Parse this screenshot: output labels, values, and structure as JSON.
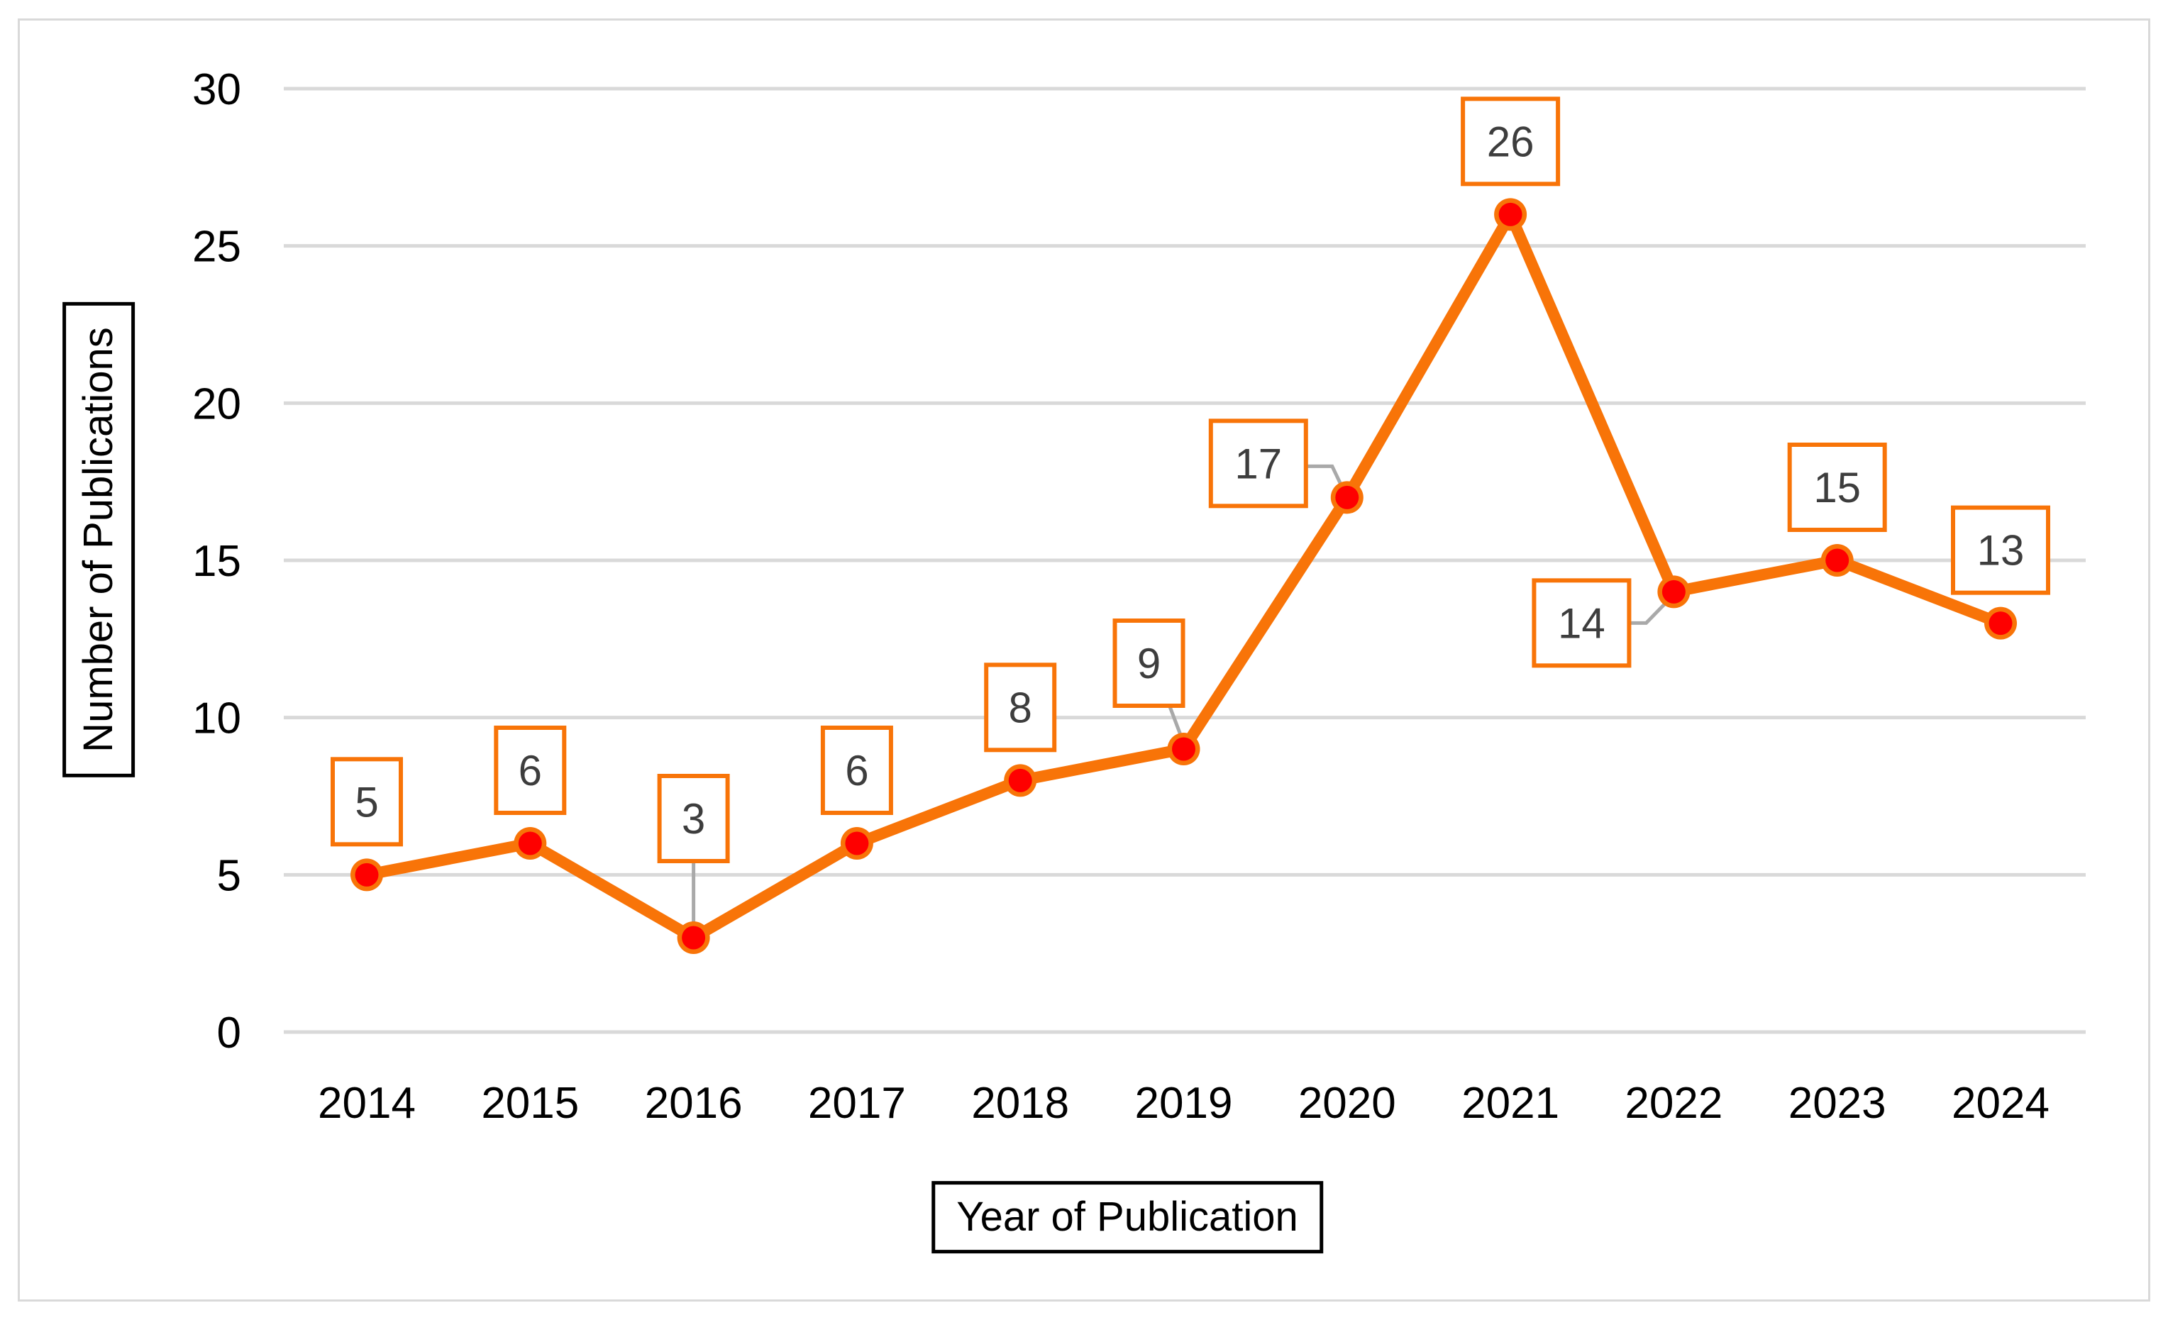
{
  "figure": {
    "background_color": "#FFFFFF",
    "frame_color": "#D9D9D9"
  },
  "chart_data": {
    "type": "line",
    "title": "",
    "xlabel": "Year of Publication",
    "ylabel": "Number of Publications",
    "categories": [
      "2014",
      "2015",
      "2016",
      "2017",
      "2018",
      "2019",
      "2020",
      "2021",
      "2022",
      "2023",
      "2024"
    ],
    "series": [
      {
        "name": "Number of Publications",
        "values": [
          5,
          6,
          3,
          6,
          8,
          9,
          17,
          26,
          14,
          15,
          13
        ],
        "data_labels": [
          "5",
          "6",
          "3",
          "6",
          "8",
          "9",
          "17",
          "26",
          "14",
          "15",
          "13"
        ]
      }
    ],
    "y_ticks": [
      0,
      5,
      10,
      15,
      20,
      25,
      30
    ],
    "ylim": [
      0,
      30
    ],
    "grid": "horizontal",
    "legend_position": "none",
    "colors": {
      "line": "#F87408",
      "marker_fill": "#FE0000",
      "marker_ring": "#F87408",
      "label_box_border": "#F87408",
      "label_box_fill": "#FFFFFF",
      "label_text": "#3D3D3D",
      "gridline": "#D9D9D9",
      "leader_line": "#A9A9A9",
      "axis_text": "#000000"
    }
  }
}
